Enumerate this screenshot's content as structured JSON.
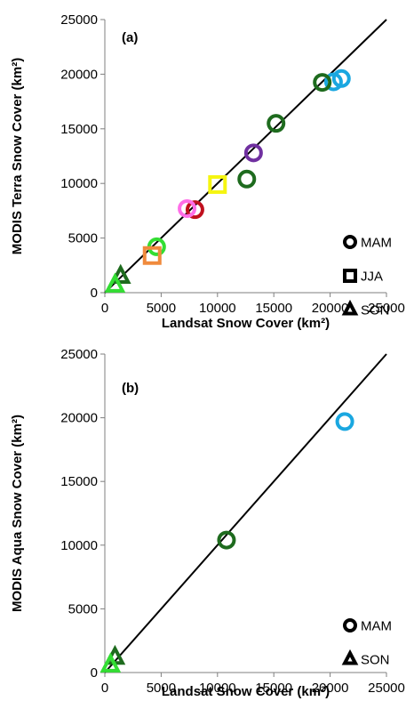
{
  "chart_data": [
    {
      "type": "scatter",
      "panel_label": "(a)",
      "xlabel": "Landsat Snow Cover (km²)",
      "ylabel": "MODIS  Terra Snow Cover (km²)",
      "xlim": [
        0,
        25000
      ],
      "ylim": [
        0,
        25000
      ],
      "xticks": [
        "0",
        "5000",
        "10000",
        "15000",
        "20000",
        "25000"
      ],
      "yticks": [
        "0",
        "5000",
        "10000",
        "15000",
        "20000",
        "25000"
      ],
      "one_to_one_line": true,
      "legend": [
        {
          "marker": "circle",
          "label": "MAM"
        },
        {
          "marker": "square",
          "label": "JJA"
        },
        {
          "marker": "triangle",
          "label": "SON"
        }
      ],
      "legend_position": "bottom-right",
      "points": [
        {
          "x": 21000,
          "y": 19600,
          "marker": "circle",
          "color": "#1aa7e0"
        },
        {
          "x": 20300,
          "y": 19300,
          "marker": "circle",
          "color": "#1aa7e0"
        },
        {
          "x": 19300,
          "y": 19250,
          "marker": "circle",
          "color": "#1e6b1e"
        },
        {
          "x": 15200,
          "y": 15500,
          "marker": "circle",
          "color": "#1e6b1e"
        },
        {
          "x": 13200,
          "y": 12800,
          "marker": "circle",
          "color": "#7030a0"
        },
        {
          "x": 12600,
          "y": 10400,
          "marker": "circle",
          "color": "#1e6b1e"
        },
        {
          "x": 10000,
          "y": 9900,
          "marker": "square",
          "color": "#f5f510"
        },
        {
          "x": 8000,
          "y": 7600,
          "marker": "circle",
          "color": "#c0101e"
        },
        {
          "x": 7300,
          "y": 7700,
          "marker": "circle",
          "color": "#ff6ee8"
        },
        {
          "x": 4600,
          "y": 4200,
          "marker": "circle",
          "color": "#33dd33"
        },
        {
          "x": 4200,
          "y": 3400,
          "marker": "square",
          "color": "#f08a3c"
        },
        {
          "x": 1400,
          "y": 1500,
          "marker": "triangle",
          "color": "#1e6b1e"
        },
        {
          "x": 900,
          "y": 700,
          "marker": "triangle",
          "color": "#33dd33"
        }
      ]
    },
    {
      "type": "scatter",
      "panel_label": "(b)",
      "xlabel": "Landsat Snow Cover (km²)",
      "ylabel": "MODIS Aqua Snow Cover (km²)",
      "xlim": [
        0,
        25000
      ],
      "ylim": [
        0,
        25000
      ],
      "xticks": [
        "0",
        "5000",
        "10000",
        "15000",
        "20000",
        "25000"
      ],
      "yticks": [
        "0",
        "5000",
        "10000",
        "15000",
        "20000",
        "25000"
      ],
      "one_to_one_line": true,
      "legend": [
        {
          "marker": "circle",
          "label": "MAM"
        },
        {
          "marker": "triangle",
          "label": "SON"
        }
      ],
      "legend_position": "bottom-right",
      "points": [
        {
          "x": 21300,
          "y": 19700,
          "marker": "circle",
          "color": "#1aa7e0"
        },
        {
          "x": 10800,
          "y": 10400,
          "marker": "circle",
          "color": "#1e6b1e"
        },
        {
          "x": 900,
          "y": 1200,
          "marker": "triangle",
          "color": "#1e6b1e"
        },
        {
          "x": 500,
          "y": 600,
          "marker": "triangle",
          "color": "#33dd33"
        }
      ]
    }
  ]
}
